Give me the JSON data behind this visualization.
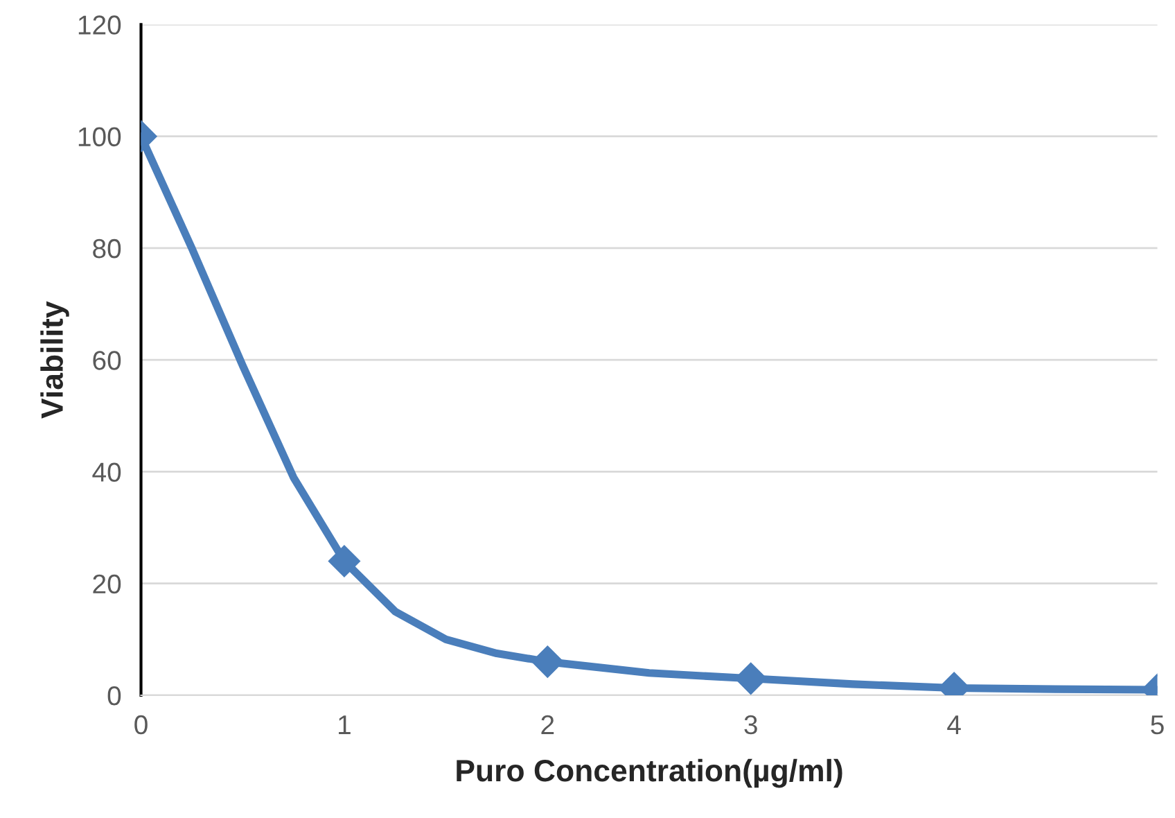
{
  "chart_data": {
    "type": "line",
    "xlabel": "Puro Concentration(µg/ml)",
    "ylabel": "Viability",
    "x": [
      0,
      1,
      2,
      3,
      4,
      5
    ],
    "series": [
      {
        "color": "#4a7ebb",
        "marker": "none",
        "x": [
          0,
          0.25,
          0.5,
          0.75,
          1,
          1.25,
          1.5,
          1.75,
          2,
          2.5,
          3,
          3.5,
          4,
          4.5,
          5
        ],
        "values": [
          100,
          80,
          59,
          39,
          24,
          15,
          10,
          7.5,
          6,
          4,
          3,
          2,
          1.3,
          1.1,
          1
        ]
      },
      {
        "type": "scatter",
        "marker": "diamond",
        "color": "#4a7ebb",
        "values": [
          100,
          24,
          6,
          3,
          1.3,
          1
        ]
      }
    ],
    "xlim": [
      0,
      5
    ],
    "xticks": [
      0,
      1,
      2,
      3,
      4,
      5
    ],
    "ylim": [
      0,
      120
    ],
    "yticks": [
      0,
      20,
      40,
      60,
      80,
      100,
      120
    ],
    "grid": "y",
    "line_style": "solid"
  }
}
